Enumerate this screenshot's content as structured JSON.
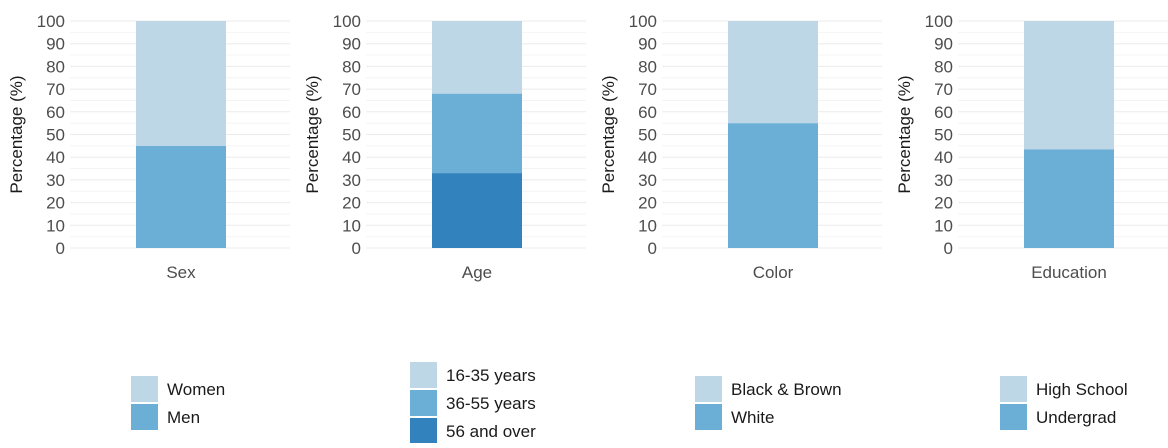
{
  "colors": {
    "light": "#bdd7e7",
    "mid": "#6baed6",
    "dark": "#3182bd",
    "grid": "#ebebeb",
    "text": "#4d4d4d"
  },
  "chart_data": [
    {
      "type": "bar",
      "stacked": true,
      "title": "",
      "xlabel": "",
      "ylabel": "Percentage (%)",
      "categories": [
        "Sex"
      ],
      "ylim": [
        0,
        100
      ],
      "yticks": [
        0,
        10,
        20,
        30,
        40,
        50,
        60,
        70,
        80,
        90,
        100
      ],
      "grid": true,
      "series": [
        {
          "name": "Men",
          "values": [
            45
          ],
          "color": "#6baed6"
        },
        {
          "name": "Women",
          "values": [
            55
          ],
          "color": "#bdd7e7"
        }
      ],
      "legend": {
        "position": "bottom",
        "entries": [
          {
            "label": "Women",
            "color": "#bdd7e7"
          },
          {
            "label": "Men",
            "color": "#6baed6"
          }
        ]
      }
    },
    {
      "type": "bar",
      "stacked": true,
      "title": "",
      "xlabel": "",
      "ylabel": "Percentage (%)",
      "categories": [
        "Age"
      ],
      "ylim": [
        0,
        100
      ],
      "yticks": [
        0,
        10,
        20,
        30,
        40,
        50,
        60,
        70,
        80,
        90,
        100
      ],
      "grid": true,
      "series": [
        {
          "name": "56 and over",
          "values": [
            33
          ],
          "color": "#3182bd"
        },
        {
          "name": "36-55 years",
          "values": [
            35
          ],
          "color": "#6baed6"
        },
        {
          "name": "16-35 years",
          "values": [
            32
          ],
          "color": "#bdd7e7"
        }
      ],
      "legend": {
        "position": "bottom",
        "entries": [
          {
            "label": "16-35 years",
            "color": "#bdd7e7"
          },
          {
            "label": "36-55 years",
            "color": "#6baed6"
          },
          {
            "label": "56 and over",
            "color": "#3182bd"
          }
        ]
      }
    },
    {
      "type": "bar",
      "stacked": true,
      "title": "",
      "xlabel": "",
      "ylabel": "Percentage (%)",
      "categories": [
        "Color"
      ],
      "ylim": [
        0,
        100
      ],
      "yticks": [
        0,
        10,
        20,
        30,
        40,
        50,
        60,
        70,
        80,
        90,
        100
      ],
      "grid": true,
      "series": [
        {
          "name": "White",
          "values": [
            55
          ],
          "color": "#6baed6"
        },
        {
          "name": "Black & Brown",
          "values": [
            45
          ],
          "color": "#bdd7e7"
        }
      ],
      "legend": {
        "position": "bottom",
        "entries": [
          {
            "label": "Black & Brown",
            "color": "#bdd7e7"
          },
          {
            "label": "White",
            "color": "#6baed6"
          }
        ]
      }
    },
    {
      "type": "bar",
      "stacked": true,
      "title": "",
      "xlabel": "",
      "ylabel": "Percentage (%)",
      "categories": [
        "Education"
      ],
      "ylim": [
        0,
        100
      ],
      "yticks": [
        0,
        10,
        20,
        30,
        40,
        50,
        60,
        70,
        80,
        90,
        100
      ],
      "grid": true,
      "series": [
        {
          "name": "Undergrad",
          "values": [
            43.5
          ],
          "color": "#6baed6"
        },
        {
          "name": "High School",
          "values": [
            56.5
          ],
          "color": "#bdd7e7"
        }
      ],
      "legend": {
        "position": "bottom",
        "entries": [
          {
            "label": "High School",
            "color": "#bdd7e7"
          },
          {
            "label": "Undergrad",
            "color": "#6baed6"
          }
        ]
      }
    }
  ]
}
